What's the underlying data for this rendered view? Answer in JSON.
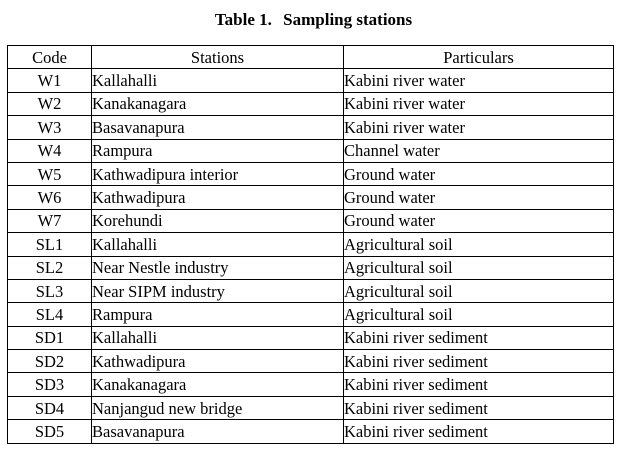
{
  "caption": {
    "label": "Table 1.",
    "title": "Sampling stations"
  },
  "table": {
    "headers": [
      "Code",
      "Stations",
      "Particulars"
    ],
    "rows": [
      [
        "W1",
        "Kallahalli",
        "Kabini river water"
      ],
      [
        "W2",
        "Kanakanagara",
        "Kabini river water"
      ],
      [
        "W3",
        "Basavanapura",
        "Kabini river water"
      ],
      [
        "W4",
        "Rampura",
        "Channel water"
      ],
      [
        "W5",
        "Kathwadipura interior",
        "Ground water"
      ],
      [
        "W6",
        "Kathwadipura",
        "Ground water"
      ],
      [
        "W7",
        "Korehundi",
        "Ground water"
      ],
      [
        "SL1",
        "Kallahalli",
        "Agricultural soil"
      ],
      [
        "SL2",
        "Near Nestle industry",
        "Agricultural soil"
      ],
      [
        "SL3",
        "Near SIPM industry",
        "Agricultural soil"
      ],
      [
        "SL4",
        "Rampura",
        "Agricultural soil"
      ],
      [
        "SD1",
        "Kallahalli",
        "Kabini river sediment"
      ],
      [
        "SD2",
        "Kathwadipura",
        "Kabini river sediment"
      ],
      [
        "SD3",
        "Kanakanagara",
        "Kabini river sediment"
      ],
      [
        "SD4",
        "Nanjangud new bridge",
        "Kabini river sediment"
      ],
      [
        "SD5",
        "Basavanapura",
        "Kabini river sediment"
      ]
    ]
  }
}
